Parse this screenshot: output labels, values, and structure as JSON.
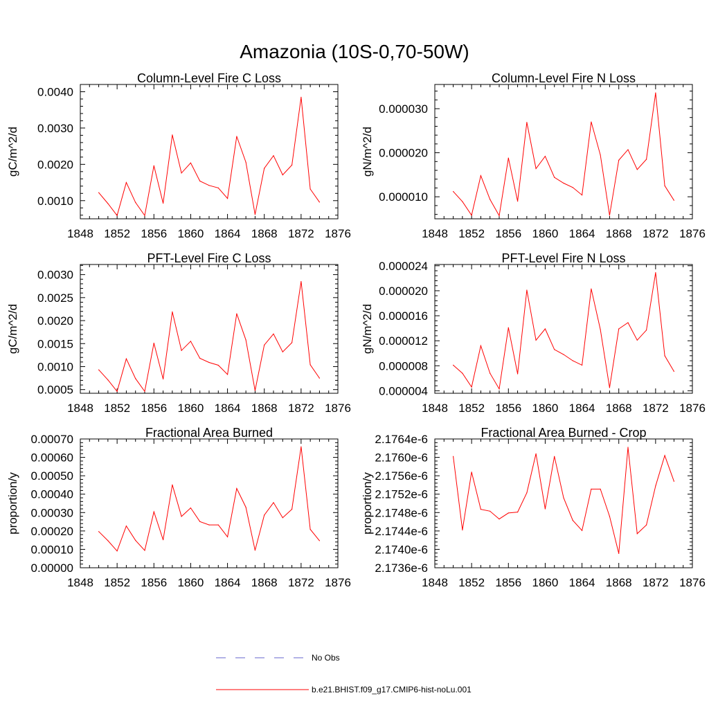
{
  "figure": {
    "title": "Amazonia (10S-0,70-50W)"
  },
  "legend": [
    {
      "label": "No Obs",
      "color": "#6666cc",
      "style": "dashed"
    },
    {
      "label": "b.e21.BHIST.f09_g17.CMIP6-hist-noLu.001",
      "color": "#ff0000",
      "style": "solid"
    }
  ],
  "chart_data": [
    {
      "type": "line",
      "title": "Column-Level Fire C Loss",
      "ylabel": "gC/m^2/d",
      "xlim": [
        1848,
        1876
      ],
      "ylim": [
        0.0005,
        0.0042
      ],
      "xticks": [
        1848,
        1852,
        1856,
        1860,
        1864,
        1868,
        1872,
        1876
      ],
      "yticks": [
        0.001,
        0.002,
        0.003,
        0.004
      ],
      "ytick_labels": [
        "0.0010",
        "0.0020",
        "0.0030",
        "0.0040"
      ],
      "series": [
        {
          "name": "b.e21.BHIST.f09_g17.CMIP6-hist-noLu.001",
          "color": "#ff0000",
          "x": [
            1850,
            1851,
            1852,
            1853,
            1854,
            1855,
            1856,
            1857,
            1858,
            1859,
            1860,
            1861,
            1862,
            1863,
            1864,
            1865,
            1866,
            1867,
            1868,
            1869,
            1870,
            1871,
            1872,
            1873,
            1874
          ],
          "y": [
            0.00122,
            0.00092,
            0.00059,
            0.0015,
            0.00095,
            0.00059,
            0.00196,
            0.00093,
            0.00281,
            0.00176,
            0.00204,
            0.00154,
            0.00142,
            0.00135,
            0.00106,
            0.00277,
            0.00206,
            0.00062,
            0.00189,
            0.00224,
            0.00171,
            0.00198,
            0.00385,
            0.00132,
            0.00096
          ]
        }
      ]
    },
    {
      "type": "line",
      "title": "Column-Level Fire N Loss",
      "ylabel": "gN/m^2/d",
      "xlim": [
        1848,
        1876
      ],
      "ylim": [
        5e-06,
        3.55e-05
      ],
      "xticks": [
        1848,
        1852,
        1856,
        1860,
        1864,
        1868,
        1872,
        1876
      ],
      "yticks": [
        1e-05,
        2e-05,
        3e-05
      ],
      "ytick_labels": [
        "0.000010",
        "0.000020",
        "0.000030"
      ],
      "series": [
        {
          "name": "b.e21.BHIST.f09_g17.CMIP6-hist-noLu.001",
          "color": "#ff0000",
          "x": [
            1850,
            1851,
            1852,
            1853,
            1854,
            1855,
            1856,
            1857,
            1858,
            1859,
            1860,
            1861,
            1862,
            1863,
            1864,
            1865,
            1866,
            1867,
            1868,
            1869,
            1870,
            1871,
            1872,
            1873,
            1874
          ],
          "y": [
            1.12e-05,
            8.9e-06,
            5.8e-06,
            1.48e-05,
            9.4e-06,
            5.7e-06,
            1.88e-05,
            9e-06,
            2.69e-05,
            1.64e-05,
            1.92e-05,
            1.44e-05,
            1.31e-05,
            1.21e-05,
            1.04e-05,
            2.7e-05,
            1.95e-05,
            5.8e-06,
            1.83e-05,
            2.07e-05,
            1.62e-05,
            1.85e-05,
            3.36e-05,
            1.25e-05,
            9.2e-06
          ]
        }
      ]
    },
    {
      "type": "line",
      "title": "PFT-Level Fire C Loss",
      "ylabel": "gC/m^2/d",
      "xlim": [
        1848,
        1876
      ],
      "ylim": [
        0.00042,
        0.00322
      ],
      "xticks": [
        1848,
        1852,
        1856,
        1860,
        1864,
        1868,
        1872,
        1876
      ],
      "yticks": [
        0.0005,
        0.001,
        0.0015,
        0.002,
        0.0025,
        0.003
      ],
      "ytick_labels": [
        "0.0005",
        "0.0010",
        "0.0015",
        "0.0020",
        "0.0025",
        "0.0030"
      ],
      "series": [
        {
          "name": "b.e21.BHIST.f09_g17.CMIP6-hist-noLu.001",
          "color": "#ff0000",
          "x": [
            1850,
            1851,
            1852,
            1853,
            1854,
            1855,
            1856,
            1857,
            1858,
            1859,
            1860,
            1861,
            1862,
            1863,
            1864,
            1865,
            1866,
            1867,
            1868,
            1869,
            1870,
            1871,
            1872,
            1873,
            1874
          ],
          "y": [
            0.00093,
            0.00071,
            0.00046,
            0.00117,
            0.00074,
            0.00046,
            0.00151,
            0.00073,
            0.00219,
            0.00135,
            0.00155,
            0.00118,
            0.00109,
            0.00103,
            0.00083,
            0.00215,
            0.00158,
            0.00048,
            0.00147,
            0.00171,
            0.00132,
            0.00152,
            0.00285,
            0.00104,
            0.00075
          ]
        }
      ]
    },
    {
      "type": "line",
      "title": "PFT-Level Fire N Loss",
      "ylabel": "gN/m^2/d",
      "xlim": [
        1848,
        1876
      ],
      "ylim": [
        3.6e-06,
        2.42e-05
      ],
      "xticks": [
        1848,
        1852,
        1856,
        1860,
        1864,
        1868,
        1872,
        1876
      ],
      "yticks": [
        4e-06,
        8e-06,
        1.2e-05,
        1.6e-05,
        2e-05,
        2.4e-05
      ],
      "ytick_labels": [
        "0.000004",
        "0.000008",
        "0.000012",
        "0.000016",
        "0.000020",
        "0.000024"
      ],
      "series": [
        {
          "name": "b.e21.BHIST.f09_g17.CMIP6-hist-noLu.001",
          "color": "#ff0000",
          "x": [
            1850,
            1851,
            1852,
            1853,
            1854,
            1855,
            1856,
            1857,
            1858,
            1859,
            1860,
            1861,
            1862,
            1863,
            1864,
            1865,
            1866,
            1867,
            1868,
            1869,
            1870,
            1871,
            1872,
            1873,
            1874
          ],
          "y": [
            8.1e-06,
            6.8e-06,
            4.6e-06,
            1.12e-05,
            6.8e-06,
            4.3e-06,
            1.41e-05,
            6.7e-06,
            2.01e-05,
            1.21e-05,
            1.39e-05,
            1.06e-05,
            9.8e-06,
            8.8e-06,
            8.1e-06,
            2.03e-05,
            1.38e-05,
            4.5e-06,
            1.39e-05,
            1.49e-05,
            1.21e-05,
            1.37e-05,
            2.29e-05,
            9.6e-06,
            7.1e-06
          ]
        }
      ]
    },
    {
      "type": "line",
      "title": "Fractional Area Burned",
      "ylabel": "proportion/y",
      "xlim": [
        1848,
        1876
      ],
      "ylim": [
        0,
        0.0007
      ],
      "xticks": [
        1848,
        1852,
        1856,
        1860,
        1864,
        1868,
        1872,
        1876
      ],
      "yticks": [
        0,
        0.0001,
        0.0002,
        0.0003,
        0.0004,
        0.0005,
        0.0006,
        0.0007
      ],
      "ytick_labels": [
        "0.00000",
        "0.00010",
        "0.00020",
        "0.00030",
        "0.00040",
        "0.00050",
        "0.00060",
        "0.00070"
      ],
      "series": [
        {
          "name": "b.e21.BHIST.f09_g17.CMIP6-hist-noLu.001",
          "color": "#ff0000",
          "x": [
            1850,
            1851,
            1852,
            1853,
            1854,
            1855,
            1856,
            1857,
            1858,
            1859,
            1860,
            1861,
            1862,
            1863,
            1864,
            1865,
            1866,
            1867,
            1868,
            1869,
            1870,
            1871,
            1872,
            1873,
            1874
          ],
          "y": [
            0.000197,
            0.000147,
            9.1e-05,
            0.000227,
            0.000149,
            9.4e-05,
            0.000304,
            0.000152,
            0.000451,
            0.000279,
            0.000325,
            0.000251,
            0.000233,
            0.000233,
            0.000168,
            0.000431,
            0.000329,
            9.5e-05,
            0.000286,
            0.000354,
            0.000272,
            0.000318,
            0.000658,
            0.000209,
            0.000147
          ]
        }
      ]
    },
    {
      "type": "line",
      "title": "Fractional Area Burned - Crop",
      "ylabel": "proportion/y",
      "xlim": [
        1848,
        1876
      ],
      "ylim": [
        2.1736e-06,
        2.1764e-06
      ],
      "xticks": [
        1848,
        1852,
        1856,
        1860,
        1864,
        1868,
        1872,
        1876
      ],
      "yticks": [
        2.1736e-06,
        2.174e-06,
        2.1744e-06,
        2.1748e-06,
        2.1752e-06,
        2.1756e-06,
        2.176e-06,
        2.1764e-06
      ],
      "ytick_labels": [
        "2.1736e-6",
        "2.1740e-6",
        "2.1744e-6",
        "2.1748e-6",
        "2.1752e-6",
        "2.1756e-6",
        "2.1760e-6",
        "2.1764e-6"
      ],
      "series": [
        {
          "name": "b.e21.BHIST.f09_g17.CMIP6-hist-noLu.001",
          "color": "#ff0000",
          "x": [
            1850,
            1851,
            1852,
            1853,
            1854,
            1855,
            1856,
            1857,
            1858,
            1859,
            1860,
            1861,
            1862,
            1863,
            1864,
            1865,
            1866,
            1867,
            1868,
            1869,
            1870,
            1871,
            1872,
            1873,
            1874
          ],
          "y": [
            2.17602e-06,
            2.17442e-06,
            2.17568e-06,
            2.17487e-06,
            2.17483e-06,
            2.17466e-06,
            2.17479e-06,
            2.17481e-06,
            2.17523e-06,
            2.17608e-06,
            2.17488e-06,
            2.17602e-06,
            2.17512e-06,
            2.17463e-06,
            2.17441e-06,
            2.17531e-06,
            2.17531e-06,
            2.17472e-06,
            2.17391e-06,
            2.17622e-06,
            2.17434e-06,
            2.17453e-06,
            2.17538e-06,
            2.17604e-06,
            2.17548e-06
          ]
        }
      ]
    }
  ]
}
